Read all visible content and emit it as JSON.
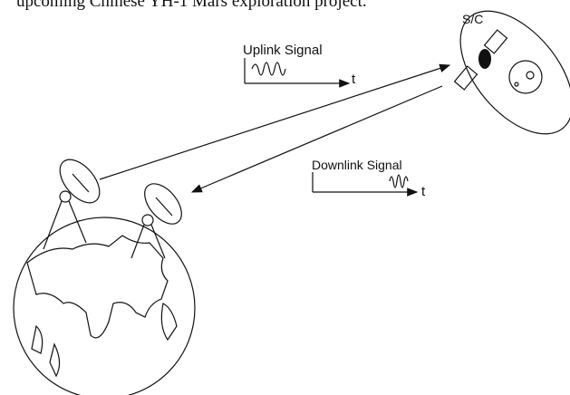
{
  "header": {
    "caption": "upcoming Chinese YH-1 Mars exploration project."
  },
  "labels": {
    "uplink": "Uplink Signal",
    "uplink_axis": "t",
    "spacecraft": "S/C",
    "downlink": "Downlink Signal",
    "downlink_axis": "t"
  }
}
